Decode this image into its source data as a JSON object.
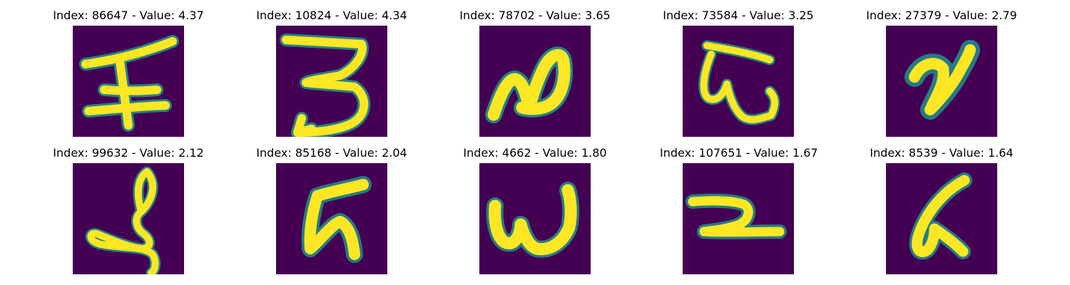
{
  "figure": {
    "background": "#ffffff",
    "colormap": "viridis",
    "colors": {
      "low": "#440154",
      "mid": "#21918c",
      "high": "#fde725"
    },
    "panels": [
      {
        "index": "86647",
        "value": "4.37",
        "title": "Index: 86647 - Value: 4.37",
        "glyph": "glyph-86647"
      },
      {
        "index": "10824",
        "value": "4.34",
        "title": "Index: 10824 - Value: 4.34",
        "glyph": "glyph-10824"
      },
      {
        "index": "78702",
        "value": "3.65",
        "title": "Index: 78702 - Value: 3.65",
        "glyph": "glyph-78702"
      },
      {
        "index": "73584",
        "value": "3.25",
        "title": "Index: 73584 - Value: 3.25",
        "glyph": "glyph-73584"
      },
      {
        "index": "27379",
        "value": "2.79",
        "title": "Index: 27379 - Value: 2.79",
        "glyph": "glyph-27379"
      },
      {
        "index": "99632",
        "value": "2.12",
        "title": "Index: 99632 - Value: 2.12",
        "glyph": "glyph-99632"
      },
      {
        "index": "85168",
        "value": "2.04",
        "title": "Index: 85168 - Value: 2.04",
        "glyph": "glyph-85168"
      },
      {
        "index": "4662",
        "value": "1.80",
        "title": "Index: 4662 - Value: 1.80",
        "glyph": "glyph-4662"
      },
      {
        "index": "107651",
        "value": "1.67",
        "title": "Index: 107651 - Value: 1.67",
        "glyph": "glyph-107651"
      },
      {
        "index": "8539",
        "value": "1.64",
        "title": "Index: 8539 - Value: 1.64",
        "glyph": "glyph-8539"
      }
    ]
  }
}
